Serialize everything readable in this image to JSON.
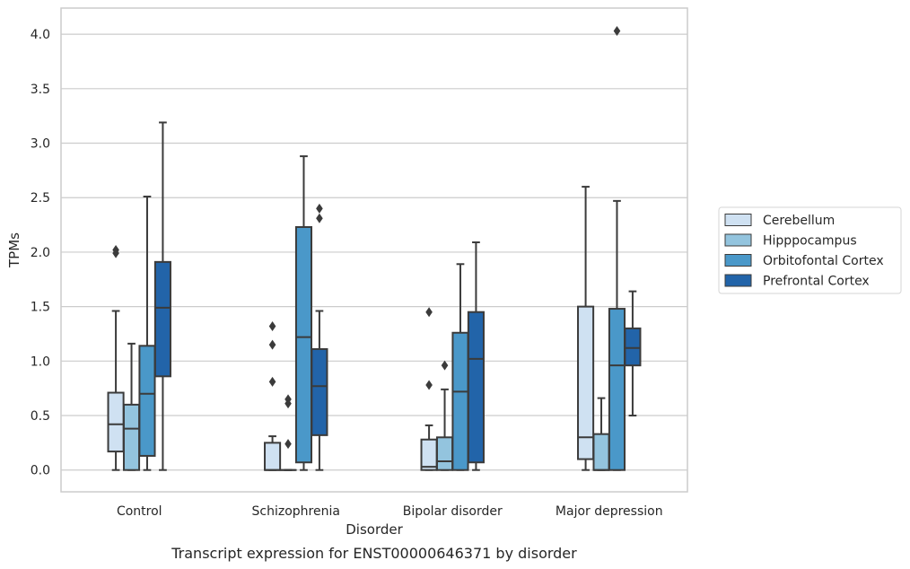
{
  "chart_data": {
    "type": "box",
    "caption": "Transcript expression for ENST00000646371 by disorder",
    "xlabel": "Disorder",
    "ylabel": "TPMs",
    "ylim": [
      -0.2,
      4.24
    ],
    "yticks": [
      "0.0",
      "0.5",
      "1.0",
      "1.5",
      "2.0",
      "2.5",
      "3.0",
      "3.5",
      "4.0"
    ],
    "grid": "horizontal",
    "legend_position": "right",
    "categories": [
      "Control",
      "Schizophrenia",
      "Bipolar disorder",
      "Major depression"
    ],
    "series": [
      {
        "name": "Cerebellum",
        "color": "#cfe1f2",
        "boxes": [
          {
            "q1": 0.17,
            "median": 0.42,
            "q3": 0.71,
            "whisker_low": 0.0,
            "whisker_high": 1.46,
            "outliers": [
              1.99,
              2.02
            ]
          },
          {
            "q1": 0.0,
            "median": 0.0,
            "q3": 0.25,
            "whisker_low": 0.0,
            "whisker_high": 0.31,
            "outliers": [
              0.81,
              1.15,
              1.32
            ]
          },
          {
            "q1": 0.0,
            "median": 0.03,
            "q3": 0.28,
            "whisker_low": 0.0,
            "whisker_high": 0.41,
            "outliers": [
              0.78,
              1.45
            ]
          },
          {
            "q1": 0.1,
            "median": 0.3,
            "q3": 1.5,
            "whisker_low": 0.0,
            "whisker_high": 2.6,
            "outliers": []
          }
        ]
      },
      {
        "name": "Hipppocampus",
        "color": "#93c4de",
        "boxes": [
          {
            "q1": 0.0,
            "median": 0.38,
            "q3": 0.6,
            "whisker_low": 0.0,
            "whisker_high": 1.16,
            "outliers": []
          },
          {
            "q1": 0.0,
            "median": 0.0,
            "q3": 0.0,
            "whisker_low": 0.0,
            "whisker_high": 0.0,
            "outliers": [
              0.24,
              0.61,
              0.65
            ]
          },
          {
            "q1": 0.0,
            "median": 0.08,
            "q3": 0.3,
            "whisker_low": 0.0,
            "whisker_high": 0.74,
            "outliers": [
              0.96
            ]
          },
          {
            "q1": 0.0,
            "median": 0.0,
            "q3": 0.33,
            "whisker_low": 0.0,
            "whisker_high": 0.66,
            "outliers": []
          }
        ]
      },
      {
        "name": "Orbitofontal Cortex",
        "color": "#4a98c9",
        "boxes": [
          {
            "q1": 0.13,
            "median": 0.7,
            "q3": 1.14,
            "whisker_low": 0.0,
            "whisker_high": 2.51,
            "outliers": []
          },
          {
            "q1": 0.07,
            "median": 1.22,
            "q3": 2.23,
            "whisker_low": 0.0,
            "whisker_high": 2.88,
            "outliers": []
          },
          {
            "q1": 0.0,
            "median": 0.72,
            "q3": 1.26,
            "whisker_low": 0.0,
            "whisker_high": 1.89,
            "outliers": []
          },
          {
            "q1": 0.0,
            "median": 0.96,
            "q3": 1.48,
            "whisker_low": 0.0,
            "whisker_high": 2.47,
            "outliers": [
              4.03
            ]
          }
        ]
      },
      {
        "name": "Prefrontal Cortex",
        "color": "#2264a9",
        "boxes": [
          {
            "q1": 0.86,
            "median": 1.49,
            "q3": 1.91,
            "whisker_low": 0.0,
            "whisker_high": 3.19,
            "outliers": []
          },
          {
            "q1": 0.32,
            "median": 0.77,
            "q3": 1.11,
            "whisker_low": 0.0,
            "whisker_high": 1.46,
            "outliers": [
              2.31,
              2.4
            ]
          },
          {
            "q1": 0.07,
            "median": 1.02,
            "q3": 1.45,
            "whisker_low": 0.0,
            "whisker_high": 2.09,
            "outliers": []
          },
          {
            "q1": 0.96,
            "median": 1.12,
            "q3": 1.3,
            "whisker_low": 0.5,
            "whisker_high": 1.64,
            "outliers": []
          }
        ]
      }
    ]
  }
}
